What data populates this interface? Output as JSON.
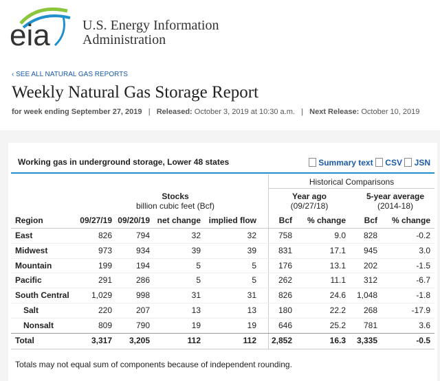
{
  "header": {
    "logo": "eia",
    "agency": [
      "U.S. Energy Information",
      "Administration"
    ]
  },
  "nav_link": "‹ SEE ALL NATURAL GAS REPORTS",
  "title": "Weekly Natural Gas Storage Report",
  "meta": {
    "week": "for week ending September 27, 2019",
    "separator": "|",
    "released_label": "Released:",
    "released": "October 3, 2019 at 10:30 a.m.",
    "next_label": "Next Release:",
    "next": "October 10, 2019"
  },
  "table": {
    "caption": "Working gas in underground storage, Lower 48 states",
    "links": [
      "Summary text",
      "CSV",
      "JSN"
    ],
    "group_header": "Historical Comparisons",
    "groups": [
      {
        "title": "Stocks",
        "subtitle": "billion cubic feet (Bcf)"
      },
      {
        "title": "Year ago",
        "subtitle": "(09/27/18)"
      },
      {
        "title": "5-year average",
        "subtitle": "(2014-18)"
      }
    ],
    "columns": [
      "Region",
      "09/27/19",
      "09/20/19",
      "net change",
      "implied flow",
      "Bcf",
      "% change",
      "Bcf",
      "% change"
    ],
    "rows": [
      [
        "East",
        "826",
        "794",
        "32",
        "32",
        "758",
        "9.0",
        "828",
        "-0.2"
      ],
      [
        "Midwest",
        "973",
        "934",
        "39",
        "39",
        "831",
        "17.1",
        "945",
        "3.0"
      ],
      [
        "Mountain",
        "199",
        "194",
        "5",
        "5",
        "176",
        "13.1",
        "202",
        "-1.5"
      ],
      [
        "Pacific",
        "291",
        "286",
        "5",
        "5",
        "262",
        "11.1",
        "312",
        "-6.7"
      ],
      [
        "South Central",
        "1,029",
        "998",
        "31",
        "31",
        "826",
        "24.6",
        "1,048",
        "-1.8"
      ],
      [
        "Salt",
        "220",
        "207",
        "13",
        "13",
        "180",
        "22.2",
        "268",
        "-17.9"
      ],
      [
        "Nonsalt",
        "809",
        "790",
        "19",
        "19",
        "646",
        "25.2",
        "781",
        "3.6"
      ],
      [
        "Total",
        "3,317",
        "3,205",
        "112",
        "112",
        "2,852",
        "16.3",
        "3,335",
        "-0.5"
      ]
    ]
  },
  "footnote": "Totals may not equal sum of components because of independent rounding."
}
